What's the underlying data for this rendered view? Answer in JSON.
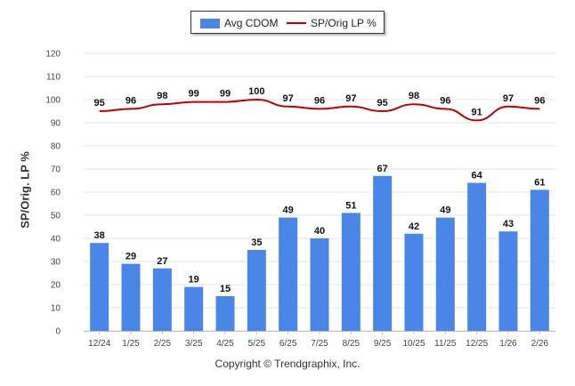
{
  "chart_data": {
    "type": "bar",
    "categories": [
      "12/24",
      "1/25",
      "2/25",
      "3/25",
      "4/25",
      "5/25",
      "6/25",
      "7/25",
      "8/25",
      "9/25",
      "10/25",
      "11/25",
      "12/25",
      "1/26",
      "2/26"
    ],
    "series": [
      {
        "name": "Avg CDOM",
        "kind": "bar",
        "color": "#4a86e8",
        "values": [
          38,
          29,
          27,
          19,
          15,
          35,
          49,
          40,
          51,
          67,
          42,
          49,
          64,
          43,
          61
        ]
      },
      {
        "name": "SP/Orig LP %",
        "kind": "line",
        "color": "#c00000",
        "values": [
          95,
          96,
          98,
          99,
          99,
          100,
          97,
          96,
          97,
          95,
          98,
          96,
          91,
          97,
          96
        ]
      }
    ],
    "ylabel": "SP/Orig. LP %",
    "xlabel": "",
    "ylim": [
      0,
      120
    ],
    "yticks": [
      0,
      10,
      20,
      30,
      40,
      50,
      60,
      70,
      80,
      90,
      100,
      110,
      120
    ],
    "grid": true,
    "legend_position": "top-center"
  },
  "legend": {
    "bar_label": "Avg CDOM",
    "line_label": "SP/Orig LP %"
  },
  "axis": {
    "ylabel": "SP/Orig. LP %"
  },
  "footer": {
    "copyright": "Copyright © Trendgraphix, Inc."
  }
}
